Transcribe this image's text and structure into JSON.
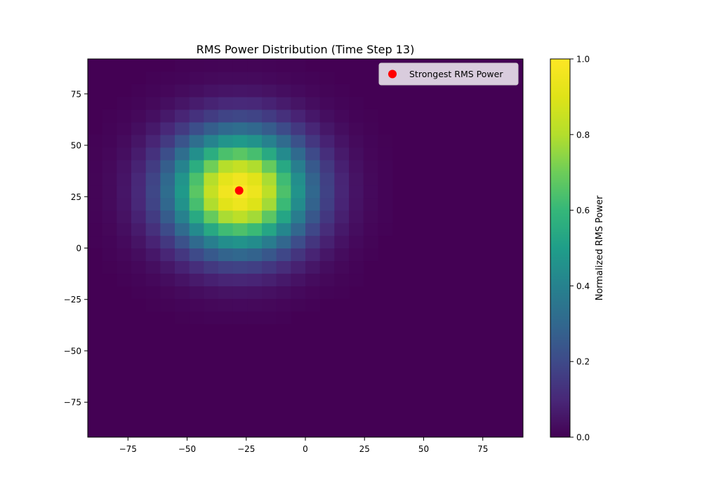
{
  "chart_data": {
    "type": "heatmap",
    "title": "RMS Power Distribution (Time Step 13)",
    "xlabel": "",
    "ylabel": "",
    "xlim": [
      -92,
      92
    ],
    "ylim": [
      -92,
      92
    ],
    "grid": false,
    "colormap": "viridis",
    "heatmap": {
      "grid_size": 30,
      "cell_size": 6.1,
      "peak_x": -28,
      "peak_y": 28,
      "sigma": 20
    },
    "x_ticks": [
      {
        "value": -75,
        "label": "−75"
      },
      {
        "value": -50,
        "label": "−50"
      },
      {
        "value": -25,
        "label": "−25"
      },
      {
        "value": 0,
        "label": "0"
      },
      {
        "value": 25,
        "label": "25"
      },
      {
        "value": 50,
        "label": "50"
      },
      {
        "value": 75,
        "label": "75"
      }
    ],
    "y_ticks": [
      {
        "value": -75,
        "label": "−75"
      },
      {
        "value": -50,
        "label": "−50"
      },
      {
        "value": -25,
        "label": "−25"
      },
      {
        "value": 0,
        "label": "0"
      },
      {
        "value": 25,
        "label": "25"
      },
      {
        "value": 50,
        "label": "50"
      },
      {
        "value": 75,
        "label": "75"
      }
    ],
    "marker": {
      "name": "Strongest RMS Power",
      "x": -28,
      "y": 28,
      "color": "#ff0000"
    },
    "legend": {
      "placement": "top-right",
      "entries": [
        "Strongest RMS Power"
      ]
    },
    "colorbar": {
      "label": "Normalized RMS Power",
      "range": [
        0,
        1
      ],
      "ticks": [
        {
          "value": 0.0,
          "label": "0.0"
        },
        {
          "value": 0.2,
          "label": "0.2"
        },
        {
          "value": 0.4,
          "label": "0.4"
        },
        {
          "value": 0.6,
          "label": "0.6"
        },
        {
          "value": 0.8,
          "label": "0.8"
        },
        {
          "value": 1.0,
          "label": "1.0"
        }
      ]
    }
  }
}
